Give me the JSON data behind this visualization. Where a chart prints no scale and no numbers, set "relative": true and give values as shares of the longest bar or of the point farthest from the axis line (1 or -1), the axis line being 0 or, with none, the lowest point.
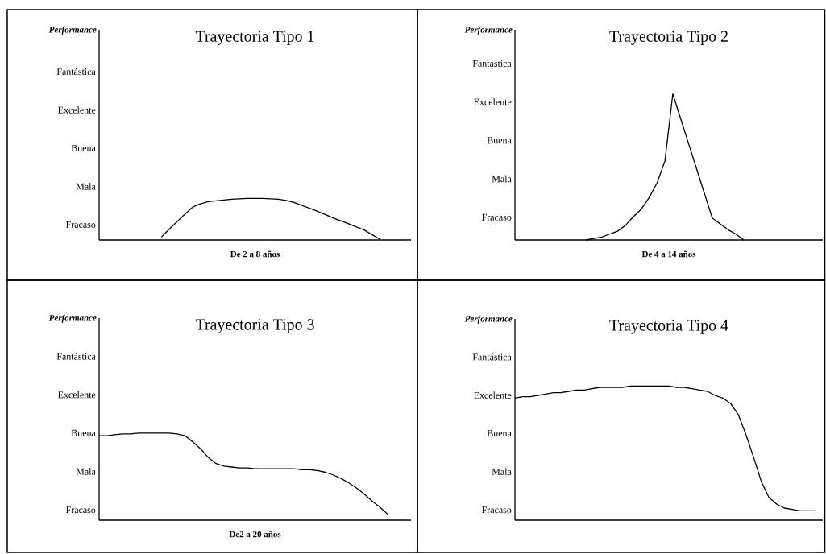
{
  "chart_data": [
    {
      "type": "line",
      "title": "Trayectoria Tipo 1",
      "xlabel": "De 2 a 8 años",
      "color": "#000000",
      "relative": true,
      "annotations": [
        "Performance",
        "Fracaso",
        "Mala",
        "Buena",
        "Excelente",
        "Fantástica"
      ],
      "categories": [
        null,
        null,
        null,
        null,
        null,
        null,
        null,
        null,
        null,
        null,
        null,
        null,
        null,
        null,
        null,
        null,
        null,
        null,
        null,
        null,
        null,
        null,
        null,
        null,
        null,
        null,
        null,
        null,
        null,
        null,
        null,
        null,
        null,
        null,
        null,
        null,
        null,
        null,
        null,
        null,
        null
      ],
      "values": [
        null,
        null,
        null,
        null,
        null,
        null,
        null,
        null,
        0.07,
        0.26,
        0.44,
        0.62,
        0.79,
        0.87,
        0.92,
        0.94,
        0.96,
        0.98,
        0.99,
        1,
        1,
        1,
        0.99,
        0.98,
        0.95,
        0.9,
        0.83,
        0.76,
        0.69,
        0.61,
        0.53,
        0.46,
        0.39,
        0.31,
        0.24,
        0.13,
        0.02,
        null,
        null,
        null,
        null
      ]
    },
    {
      "type": "line",
      "title": "Trayectoria Tipo 2",
      "xlabel": "De 4 a 14 años",
      "color": "#000000",
      "relative": true,
      "annotations": [
        "Performance",
        "Fracaso",
        "Mala",
        "Buena",
        "Excelente",
        "Fantástica"
      ],
      "categories": [
        null,
        null,
        null,
        null,
        null,
        null,
        null,
        null,
        null,
        null,
        null,
        null,
        null,
        null,
        null,
        null,
        null,
        null,
        null,
        null,
        null,
        null,
        null,
        null,
        null,
        null,
        null,
        null,
        null,
        null,
        null,
        null,
        null,
        null,
        null,
        null,
        null,
        null,
        null,
        null
      ],
      "values": [
        null,
        null,
        null,
        null,
        null,
        null,
        null,
        null,
        null,
        0,
        0.01,
        0.02,
        0.04,
        0.06,
        0.1,
        0.16,
        0.21,
        0.29,
        0.39,
        0.54,
        1,
        0.83,
        0.66,
        0.49,
        0.32,
        0.15,
        0.11,
        0.07,
        0.04,
        0,
        null,
        null,
        null,
        null,
        null,
        null,
        null,
        null,
        null,
        null
      ]
    },
    {
      "type": "line",
      "title": "Trayectoria Tipo 3",
      "xlabel": "De2 a 20 años",
      "color": "#000000",
      "relative": true,
      "annotations": [
        "Performance",
        "Fracaso",
        "Mala",
        "Buena",
        "Excelente",
        "Fantástica"
      ],
      "categories": [
        null,
        null,
        null,
        null,
        null,
        null,
        null,
        null,
        null,
        null,
        null,
        null,
        null,
        null,
        null,
        null,
        null,
        null,
        null,
        null,
        null,
        null,
        null,
        null,
        null,
        null,
        null,
        null,
        null,
        null,
        null,
        null,
        null,
        null,
        null,
        null,
        null,
        null,
        null,
        null,
        null
      ],
      "values": [
        0.97,
        0.97,
        0.98,
        0.99,
        0.99,
        1,
        1,
        1,
        1,
        1,
        0.99,
        0.97,
        0.9,
        0.82,
        0.72,
        0.65,
        0.62,
        0.61,
        0.6,
        0.6,
        0.59,
        0.59,
        0.59,
        0.59,
        0.59,
        0.59,
        0.58,
        0.58,
        0.57,
        0.55,
        0.52,
        0.48,
        0.43,
        0.37,
        0.3,
        0.22,
        0.15,
        0.07,
        null,
        null,
        null
      ]
    },
    {
      "type": "line",
      "title": "Trayectoria Tipo 4",
      "color": "#000000",
      "relative": true,
      "annotations": [
        "Performance",
        "Fracaso",
        "Mala",
        "Buena",
        "Excelente",
        "Fantástica"
      ],
      "categories": [
        null,
        null,
        null,
        null,
        null,
        null,
        null,
        null,
        null,
        null,
        null,
        null,
        null,
        null,
        null,
        null,
        null,
        null,
        null,
        null,
        null,
        null,
        null,
        null,
        null,
        null,
        null,
        null,
        null,
        null,
        null,
        null,
        null,
        null,
        null,
        null,
        null,
        null,
        null,
        null,
        null
      ],
      "values": [
        0.91,
        0.92,
        0.92,
        0.93,
        0.94,
        0.95,
        0.95,
        0.96,
        0.97,
        0.97,
        0.98,
        0.99,
        0.99,
        0.99,
        0.99,
        1,
        1,
        1,
        1,
        1,
        1,
        0.99,
        0.99,
        0.98,
        0.97,
        0.96,
        0.93,
        0.91,
        0.87,
        0.79,
        0.64,
        0.47,
        0.29,
        0.17,
        0.12,
        0.09,
        0.08,
        0.07,
        0.07,
        0.07,
        null
      ]
    }
  ]
}
